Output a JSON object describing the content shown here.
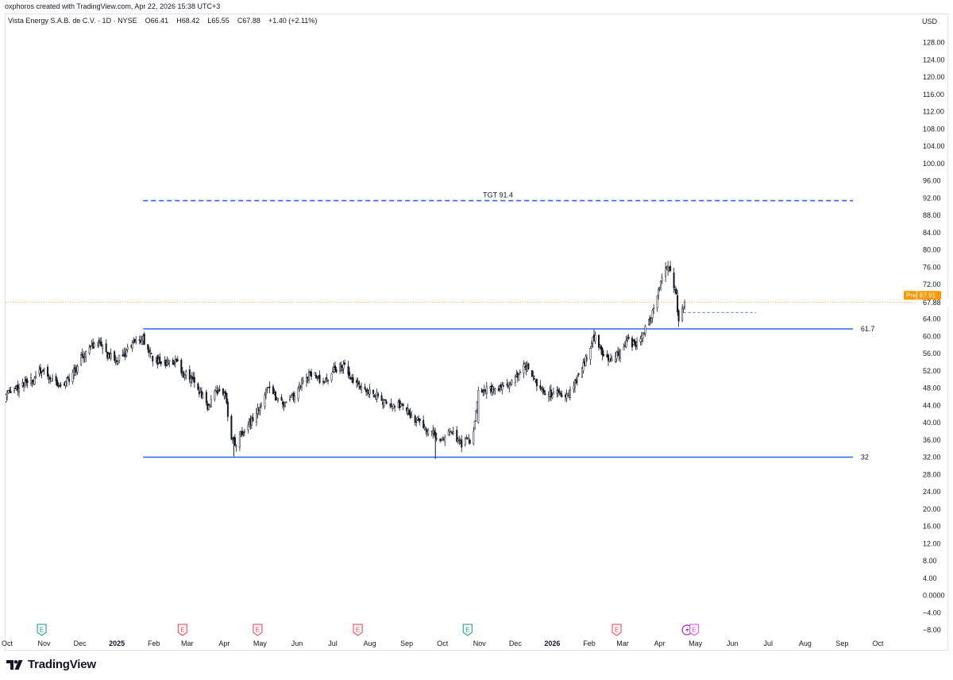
{
  "attribution": "oxphoros created with TradingView.com, Apr 22, 2026 15:38 UTC+3",
  "legend": {
    "symbol": "Vista Energy S.A.B. de C.V. · 1D · NYSE",
    "open": "O66.41",
    "high": "H68.42",
    "low": "L65.55",
    "close": "C67.88",
    "change": "+1.40 (+2.11%)"
  },
  "currency": "USD",
  "brand": "TradingView",
  "colors": {
    "line_blue": "#2962ff",
    "pre_orange": "#ff9800",
    "candle": "#131722",
    "earnings_green": "#089981",
    "earnings_red": "#f23645",
    "dividend_purple": "#9c27b0",
    "earnings_pink": "#e040fb"
  },
  "chart_data": {
    "type": "candlestick",
    "y_ticks": [
      "128.00",
      "124.00",
      "120.00",
      "116.00",
      "112.00",
      "108.00",
      "104.00",
      "100.00",
      "96.00",
      "92.00",
      "88.00",
      "84.00",
      "80.00",
      "76.00",
      "72.00",
      "67.88",
      "64.00",
      "60.00",
      "56.00",
      "52.00",
      "48.00",
      "44.00",
      "40.00",
      "36.00",
      "32.00",
      "28.00",
      "24.00",
      "20.00",
      "16.00",
      "12.00",
      "8.00",
      "4.00",
      "0.0000",
      "−4.00",
      "−8.00"
    ],
    "x_ticks": [
      {
        "label": "Oct",
        "bold": false
      },
      {
        "label": "Nov",
        "bold": false
      },
      {
        "label": "Dec",
        "bold": false
      },
      {
        "label": "2025",
        "bold": true
      },
      {
        "label": "Feb",
        "bold": false
      },
      {
        "label": "Mar",
        "bold": false
      },
      {
        "label": "Apr",
        "bold": false
      },
      {
        "label": "May",
        "bold": false
      },
      {
        "label": "Jun",
        "bold": false
      },
      {
        "label": "Jul",
        "bold": false
      },
      {
        "label": "Aug",
        "bold": false
      },
      {
        "label": "Sep",
        "bold": false
      },
      {
        "label": "Oct",
        "bold": false
      },
      {
        "label": "Nov",
        "bold": false
      },
      {
        "label": "Dec",
        "bold": false
      },
      {
        "label": "2026",
        "bold": true
      },
      {
        "label": "Feb",
        "bold": false
      },
      {
        "label": "Mar",
        "bold": false
      },
      {
        "label": "Apr",
        "bold": false
      },
      {
        "label": "May",
        "bold": false
      },
      {
        "label": "Jun",
        "bold": false
      },
      {
        "label": "Jul",
        "bold": false
      },
      {
        "label": "Aug",
        "bold": false
      },
      {
        "label": "Sep",
        "bold": false
      },
      {
        "label": "Oct",
        "bold": false
      }
    ],
    "horizontal_lines": [
      {
        "label": "TGT 91.4",
        "value": 91.4,
        "style": "dashed",
        "from": "2025-01-23",
        "to": "2026-09-10"
      },
      {
        "label": "61.7",
        "value": 61.7,
        "style": "solid",
        "from": "2025-01-23",
        "to": "2026-09-10"
      },
      {
        "label": "32",
        "value": 32,
        "style": "solid",
        "from": "2025-01-23",
        "to": "2026-09-10"
      }
    ],
    "pre_market": {
      "label": "Pre",
      "value_label": "67.91",
      "value": 67.91
    },
    "projection_line": {
      "value": 65.5,
      "from": "2026-04-21",
      "to": "2026-06-21"
    },
    "events": [
      {
        "type": "E",
        "color": "green",
        "date": "2024-10-30"
      },
      {
        "type": "E",
        "color": "red",
        "date": "2025-02-25"
      },
      {
        "type": "E",
        "color": "red",
        "date": "2025-04-29"
      },
      {
        "type": "E",
        "color": "red",
        "date": "2025-07-22"
      },
      {
        "type": "E",
        "color": "green",
        "date": "2025-10-22"
      },
      {
        "type": "E",
        "color": "red",
        "date": "2026-02-24"
      },
      {
        "type": "D",
        "color": "purple",
        "date": "2026-04-24"
      },
      {
        "type": "E",
        "color": "pink",
        "date": "2026-04-30"
      }
    ],
    "price_path": [
      [
        "2024-09-26",
        45.5
      ],
      [
        "2024-10-07",
        48.0
      ],
      [
        "2024-10-21",
        49.5
      ],
      [
        "2024-10-30",
        52.0
      ],
      [
        "2024-11-06",
        50.5
      ],
      [
        "2024-11-15",
        48.5
      ],
      [
        "2024-11-22",
        50.0
      ],
      [
        "2024-11-30",
        54.0
      ],
      [
        "2024-12-06",
        56.5
      ],
      [
        "2024-12-16",
        58.5
      ],
      [
        "2024-12-23",
        56.0
      ],
      [
        "2024-12-31",
        54.5
      ],
      [
        "2025-01-08",
        56.0
      ],
      [
        "2025-01-17",
        59.0
      ],
      [
        "2025-01-23",
        59.5
      ],
      [
        "2025-01-31",
        55.0
      ],
      [
        "2025-02-10",
        53.5
      ],
      [
        "2025-02-20",
        54.5
      ],
      [
        "2025-02-25",
        51.5
      ],
      [
        "2025-03-05",
        50.5
      ],
      [
        "2025-03-12",
        47.0
      ],
      [
        "2025-03-18",
        43.5
      ],
      [
        "2025-03-25",
        47.5
      ],
      [
        "2025-04-02",
        46.0
      ],
      [
        "2025-04-07",
        36.5
      ],
      [
        "2025-04-10",
        34.5
      ],
      [
        "2025-04-17",
        38.5
      ],
      [
        "2025-04-25",
        40.5
      ],
      [
        "2025-05-01",
        44.0
      ],
      [
        "2025-05-09",
        48.5
      ],
      [
        "2025-05-15",
        45.5
      ],
      [
        "2025-05-22",
        44.0
      ],
      [
        "2025-05-30",
        46.5
      ],
      [
        "2025-06-06",
        50.0
      ],
      [
        "2025-06-13",
        51.5
      ],
      [
        "2025-06-20",
        50.0
      ],
      [
        "2025-06-27",
        49.5
      ],
      [
        "2025-07-03",
        52.5
      ],
      [
        "2025-07-10",
        53.0
      ],
      [
        "2025-07-17",
        50.0
      ],
      [
        "2025-07-24",
        48.0
      ],
      [
        "2025-08-01",
        47.5
      ],
      [
        "2025-08-08",
        46.0
      ],
      [
        "2025-08-15",
        44.0
      ],
      [
        "2025-08-22",
        43.5
      ],
      [
        "2025-08-29",
        44.5
      ],
      [
        "2025-09-05",
        41.5
      ],
      [
        "2025-09-12",
        40.0
      ],
      [
        "2025-09-19",
        38.5
      ],
      [
        "2025-09-25",
        37.0
      ],
      [
        "2025-09-29",
        35.5
      ],
      [
        "2025-10-03",
        36.5
      ],
      [
        "2025-10-07",
        39.0
      ],
      [
        "2025-10-10",
        37.0
      ],
      [
        "2025-10-14",
        35.5
      ],
      [
        "2025-10-17",
        35.0
      ],
      [
        "2025-10-21",
        36.0
      ],
      [
        "2025-10-24",
        35.5
      ],
      [
        "2025-10-28",
        39.5
      ],
      [
        "2025-10-31",
        48.0
      ],
      [
        "2025-11-07",
        47.5
      ],
      [
        "2025-11-14",
        48.0
      ],
      [
        "2025-11-21",
        48.5
      ],
      [
        "2025-11-28",
        49.0
      ],
      [
        "2025-12-05",
        52.0
      ],
      [
        "2025-12-10",
        53.0
      ],
      [
        "2025-12-17",
        50.0
      ],
      [
        "2025-12-24",
        47.0
      ],
      [
        "2025-12-31",
        46.5
      ],
      [
        "2026-01-07",
        47.5
      ],
      [
        "2026-01-12",
        45.5
      ],
      [
        "2026-01-15",
        47.0
      ],
      [
        "2026-01-21",
        50.0
      ],
      [
        "2026-01-27",
        53.5
      ],
      [
        "2026-02-03",
        58.5
      ],
      [
        "2026-02-06",
        60.5
      ],
      [
        "2026-02-11",
        56.5
      ],
      [
        "2026-02-18",
        55.0
      ],
      [
        "2026-02-25",
        56.0
      ],
      [
        "2026-03-04",
        59.0
      ],
      [
        "2026-03-11",
        58.0
      ],
      [
        "2026-03-18",
        60.5
      ],
      [
        "2026-03-23",
        63.0
      ],
      [
        "2026-03-27",
        67.0
      ],
      [
        "2026-04-01",
        72.0
      ],
      [
        "2026-04-06",
        75.5
      ],
      [
        "2026-04-09",
        76.5
      ],
      [
        "2026-04-13",
        72.0
      ],
      [
        "2026-04-15",
        69.0
      ],
      [
        "2026-04-17",
        64.0
      ],
      [
        "2026-04-20",
        66.5
      ],
      [
        "2026-04-22",
        67.88
      ]
    ]
  }
}
